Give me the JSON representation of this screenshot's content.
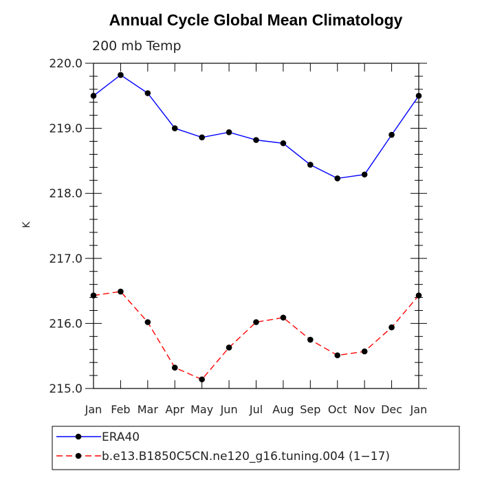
{
  "chart_data": {
    "type": "line",
    "title": "Annual Cycle Global Mean Climatology",
    "subtitle": "200 mb Temp",
    "xlabel": "",
    "ylabel": "K",
    "categories": [
      "Jan",
      "Feb",
      "Mar",
      "Apr",
      "May",
      "Jun",
      "Jul",
      "Aug",
      "Sep",
      "Oct",
      "Nov",
      "Dec",
      "Jan"
    ],
    "ylim": [
      215.0,
      220.0
    ],
    "yticks": [
      "215.0",
      "216.0",
      "217.0",
      "218.0",
      "219.0",
      "220.0"
    ],
    "ytick_values": [
      215.0,
      216.0,
      217.0,
      218.0,
      219.0,
      220.0
    ],
    "legend_position": "bottom",
    "series": [
      {
        "name": "ERA40",
        "color": "#0000ff",
        "style": "solid",
        "values": [
          219.5,
          219.82,
          219.54,
          219.0,
          218.86,
          218.94,
          218.82,
          218.77,
          218.44,
          218.23,
          218.29,
          218.9,
          219.5
        ]
      },
      {
        "name": "b.e13.B1850C5CN.ne120_g16.tuning.004 (1−17)",
        "color": "#ff0000",
        "style": "dashed",
        "values": [
          216.43,
          216.49,
          216.02,
          215.32,
          215.14,
          215.63,
          216.02,
          216.09,
          215.75,
          215.51,
          215.57,
          215.94,
          216.43
        ]
      }
    ]
  }
}
